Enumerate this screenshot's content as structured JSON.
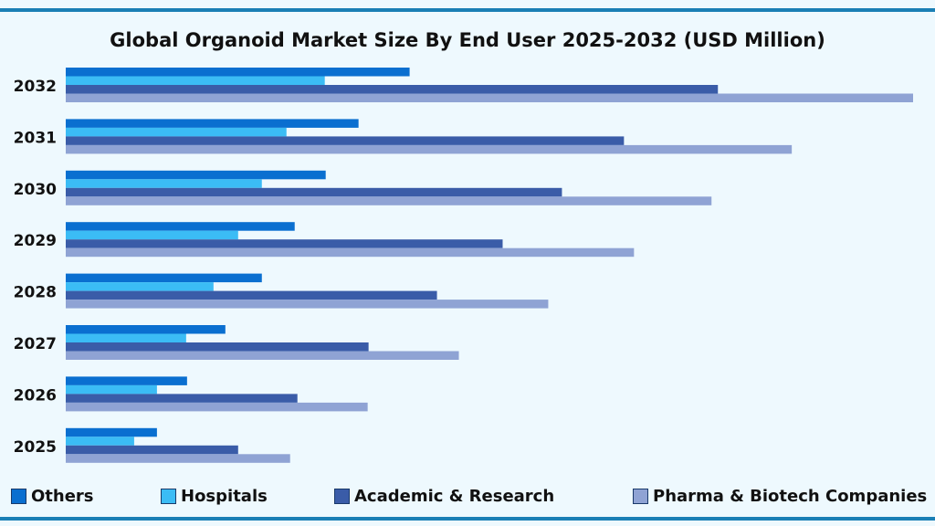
{
  "chart_data": {
    "type": "bar",
    "orientation": "horizontal",
    "title": "Global Organoid Market Size By End User 2025-2032 (USD Million)",
    "categories": [
      "2032",
      "2031",
      "2030",
      "2029",
      "2028",
      "2027",
      "2026",
      "2025"
    ],
    "series": [
      {
        "name": "Others",
        "color": "#0a6fd0",
        "values": [
          377,
          321,
          285,
          251,
          215,
          175,
          133,
          100
        ]
      },
      {
        "name": "Hospitals",
        "color": "#3bbcf5",
        "values": [
          284,
          242,
          215,
          189,
          162,
          132,
          100,
          75
        ]
      },
      {
        "name": "Academic & Research",
        "color": "#3a5ca8",
        "values": [
          715,
          612,
          544,
          479,
          407,
          332,
          254,
          189
        ]
      },
      {
        "name": "Pharma & Biotech Companies",
        "color": "#8fa3d4",
        "values": [
          929,
          796,
          708,
          623,
          529,
          431,
          331,
          246
        ]
      }
    ],
    "xlim": [
      0,
      930
    ],
    "axis_values_shown": false,
    "grid": false,
    "legend": "bottom"
  },
  "colors": {
    "background": "#eef9fe",
    "rule": "#1a7fb5"
  }
}
